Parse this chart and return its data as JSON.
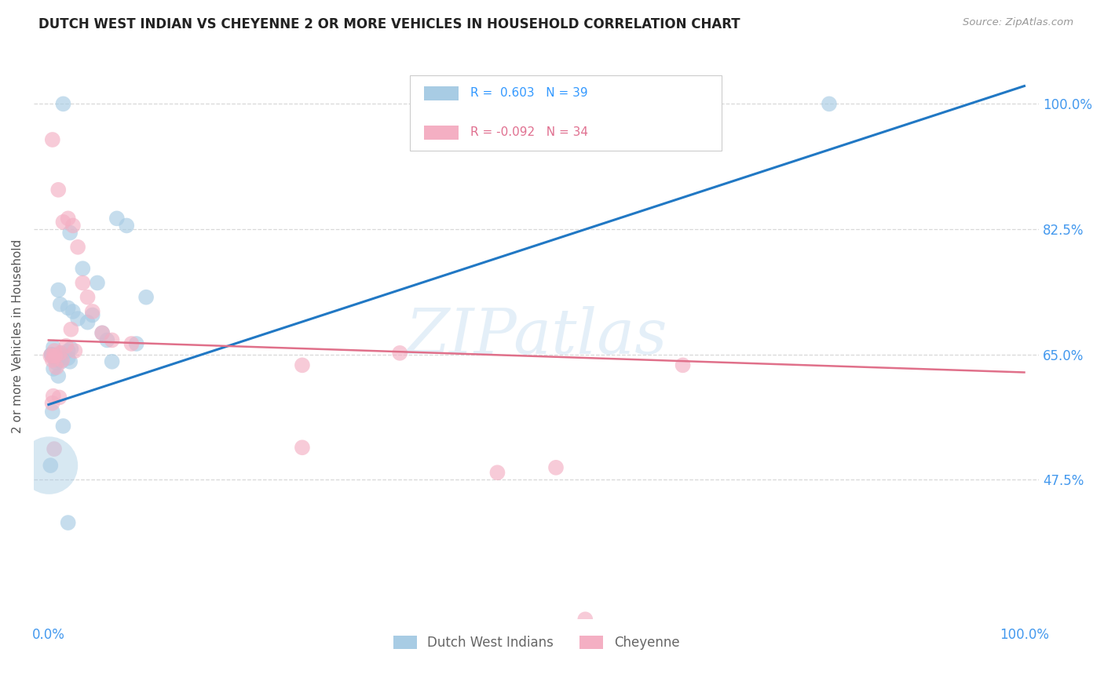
{
  "title": "DUTCH WEST INDIAN VS CHEYENNE 2 OR MORE VEHICLES IN HOUSEHOLD CORRELATION CHART",
  "source": "Source: ZipAtlas.com",
  "ylabel": "2 or more Vehicles in Household",
  "legend_blue_label": "Dutch West Indians",
  "legend_pink_label": "Cheyenne",
  "R_blue": 0.603,
  "N_blue": 39,
  "R_pink": -0.092,
  "N_pink": 34,
  "blue_color": "#a8cce4",
  "pink_color": "#f4afc3",
  "blue_line_color": "#2178c4",
  "pink_line_color": "#e0708a",
  "watermark": "ZIPatlas",
  "blue_x": [
    1.5,
    7.0,
    8.0,
    2.2,
    3.5,
    5.0,
    1.0,
    1.2,
    2.0,
    2.5,
    3.0,
    4.0,
    4.5,
    5.5,
    6.0,
    1.0,
    2.0,
    2.3,
    10.0,
    0.5,
    1.0,
    0.3,
    1.3,
    2.0,
    1.0,
    0.8,
    0.4,
    0.6,
    0.5,
    80.0,
    1.5,
    9.0,
    6.5,
    0.3,
    0.7,
    1.3,
    2.2,
    2.0,
    0.2
  ],
  "blue_y": [
    100.0,
    84.0,
    83.0,
    82.0,
    77.0,
    75.0,
    74.0,
    72.0,
    71.5,
    71.0,
    70.0,
    69.5,
    70.5,
    68.0,
    67.0,
    65.0,
    65.5,
    65.8,
    73.0,
    63.0,
    62.0,
    65.0,
    64.0,
    64.5,
    64.2,
    63.8,
    57.0,
    64.5,
    66.0,
    100.0,
    55.0,
    66.5,
    64.0,
    65.0,
    64.8,
    65.2,
    64.0,
    41.5,
    49.5
  ],
  "blue_sizes_raw": [
    1,
    1,
    1,
    1,
    1,
    1,
    1,
    1,
    1,
    1,
    1,
    1,
    1,
    1,
    1,
    1,
    1,
    1,
    1,
    1,
    1,
    1,
    1,
    1,
    1,
    1,
    1,
    1,
    1,
    1,
    1,
    1,
    1,
    1,
    1,
    1,
    1,
    1,
    1
  ],
  "blue_large_x": 0.05,
  "blue_large_y": 49.5,
  "blue_large_size": 2800,
  "pink_x": [
    0.4,
    1.0,
    1.5,
    2.0,
    2.5,
    3.0,
    3.5,
    4.0,
    4.5,
    5.5,
    6.5,
    8.5,
    0.6,
    1.2,
    1.8,
    2.3,
    2.7,
    1.4,
    0.8,
    0.4,
    0.2,
    0.5,
    0.7,
    1.1,
    36.0,
    26.0,
    0.38,
    0.48,
    0.58,
    52.0,
    65.0,
    46.0,
    26.0,
    55.0
  ],
  "pink_y": [
    95.0,
    88.0,
    83.5,
    84.0,
    83.0,
    80.0,
    75.0,
    73.0,
    71.0,
    68.0,
    67.0,
    66.5,
    65.5,
    65.2,
    66.2,
    68.5,
    65.5,
    64.2,
    63.2,
    64.2,
    64.8,
    64.8,
    64.8,
    59.0,
    65.2,
    63.5,
    58.2,
    59.2,
    51.8,
    49.2,
    63.5,
    48.5,
    52.0,
    28.0
  ],
  "xmin": -1.5,
  "xmax": 101.5,
  "ymin": 28.0,
  "ymax": 107.0,
  "yticks": [
    47.5,
    65.0,
    82.5,
    100.0
  ],
  "ytick_labels": [
    "47.5%",
    "65.0%",
    "82.5%",
    "100.0%"
  ],
  "grid_color": "#d8d8d8",
  "blue_line_x": [
    0,
    100
  ],
  "blue_line_y": [
    58.0,
    102.5
  ],
  "pink_line_x": [
    0,
    100
  ],
  "pink_line_y": [
    67.0,
    62.5
  ]
}
